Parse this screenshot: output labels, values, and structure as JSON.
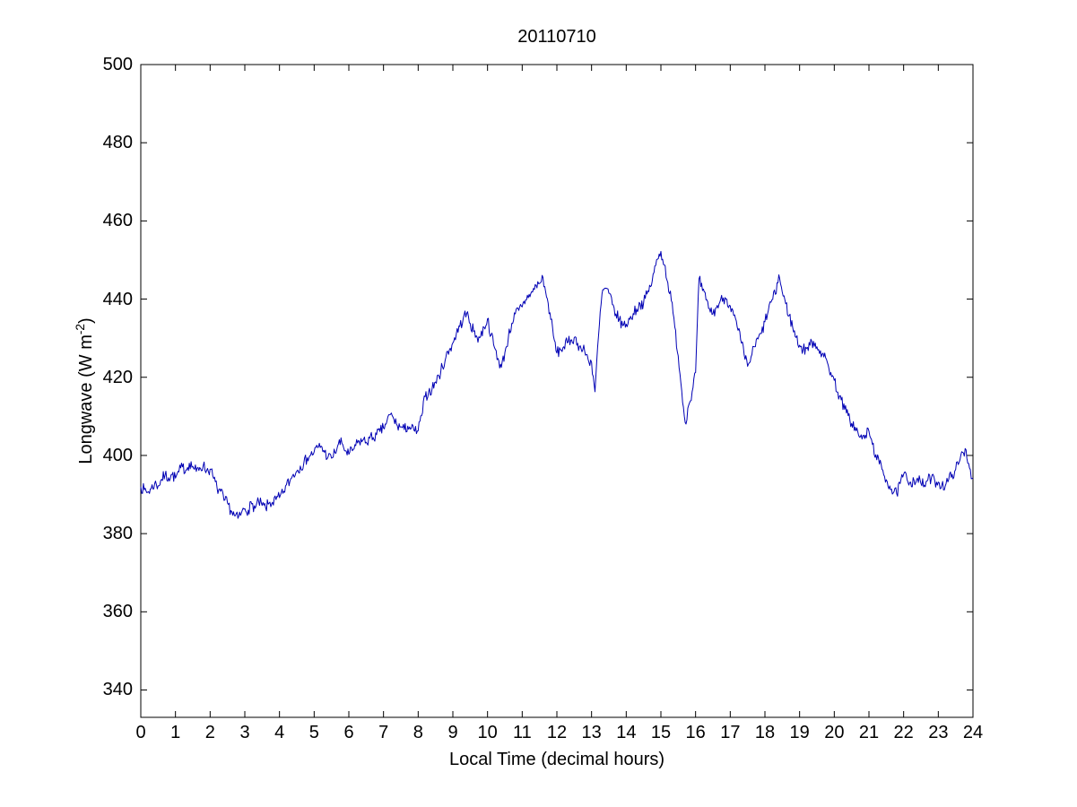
{
  "chart_data": {
    "type": "line",
    "title": "20110710",
    "xlabel": "Local Time (decimal hours)",
    "ylabel_parts": [
      "Longwave (W m",
      "-2",
      ")"
    ],
    "xlim": [
      0,
      24
    ],
    "ylim": [
      333,
      500
    ],
    "grid": false,
    "legend": "none",
    "background": "#ffffff",
    "axis_color": "#000000",
    "x_ticks": [
      0,
      1,
      2,
      3,
      4,
      5,
      6,
      7,
      8,
      9,
      10,
      11,
      12,
      13,
      14,
      15,
      16,
      17,
      18,
      19,
      20,
      21,
      22,
      23,
      24
    ],
    "x_tick_labels": [
      "0",
      "1",
      "2",
      "3",
      "4",
      "5",
      "6",
      "7",
      "8",
      "9",
      "10",
      "11",
      "12",
      "13",
      "14",
      "15",
      "16",
      "17",
      "18",
      "19",
      "20",
      "21",
      "22",
      "23",
      "24"
    ],
    "y_ticks": [
      340,
      360,
      380,
      400,
      420,
      440,
      460,
      480,
      500
    ],
    "y_tick_labels": [
      "340",
      "360",
      "380",
      "400",
      "420",
      "440",
      "460",
      "480",
      "500"
    ],
    "render_noise": {
      "amplitude": 1.5,
      "subdivisions": 4,
      "seed": 7
    },
    "series": [
      {
        "name": "longwave",
        "color": "#0000b4",
        "x_start": 0,
        "x_step": 0.1,
        "values": [
          392.0,
          391.2,
          390.6,
          391.5,
          392.8,
          392.2,
          393.9,
          395.0,
          394.3,
          395.1,
          394.2,
          395.8,
          397.1,
          396.3,
          398.0,
          397.2,
          395.9,
          396.9,
          397.4,
          396.2,
          396.5,
          394.1,
          391.6,
          390.8,
          388.5,
          387.8,
          385.9,
          384.6,
          383.9,
          385.2,
          386.4,
          386.0,
          387.6,
          386.5,
          388.1,
          387.2,
          386.6,
          387.8,
          388.0,
          388.7,
          389.2,
          390.3,
          392.5,
          393.4,
          395.2,
          396.0,
          397.3,
          397.9,
          399.4,
          400.1,
          400.9,
          402.0,
          402.4,
          400.8,
          399.6,
          399.3,
          400.7,
          403.0,
          403.1,
          401.2,
          400.3,
          401.2,
          402.5,
          403.6,
          403.9,
          403.4,
          404.4,
          404.6,
          405.3,
          406.1,
          407.0,
          408.8,
          410.5,
          409.2,
          407.6,
          407.3,
          406.6,
          407.5,
          406.9,
          406.2,
          406.3,
          410.2,
          415.0,
          416.2,
          417.0,
          418.8,
          420.3,
          422.7,
          425.2,
          427.0,
          428.8,
          431.2,
          433.0,
          435.1,
          436.4,
          433.8,
          431.7,
          430.2,
          430.4,
          432.8,
          435.0,
          430.8,
          427.6,
          424.8,
          422.5,
          426.3,
          430.2,
          433.8,
          436.2,
          437.1,
          438.0,
          439.8,
          441.2,
          441.8,
          443.5,
          444.0,
          445.5,
          440.6,
          436.5,
          430.6,
          426.2,
          427.0,
          427.8,
          428.8,
          429.5,
          430.1,
          428.7,
          427.2,
          426.8,
          424.6,
          423.8,
          416.3,
          430.5,
          441.3,
          442.8,
          441.5,
          438.6,
          436.2,
          434.8,
          433.2,
          433.6,
          434.8,
          436.3,
          437.5,
          438.8,
          439.0,
          441.3,
          443.2,
          446.8,
          450.2,
          452.2,
          448.8,
          444.2,
          439.6,
          432.8,
          425.5,
          416.6,
          408.4,
          412.8,
          416.3,
          421.2,
          445.2,
          442.2,
          439.8,
          437.6,
          436.2,
          437.8,
          439.2,
          440.3,
          440.0,
          438.3,
          435.8,
          432.8,
          429.6,
          425.8,
          422.8,
          425.2,
          427.8,
          429.8,
          431.2,
          434.2,
          437.2,
          439.8,
          441.2,
          446.2,
          441.8,
          438.8,
          435.8,
          432.8,
          430.2,
          428.2,
          427.0,
          427.4,
          428.2,
          429.2,
          427.8,
          426.8,
          425.2,
          423.8,
          421.2,
          419.2,
          416.2,
          414.2,
          411.8,
          410.2,
          408.2,
          407.2,
          405.2,
          404.2,
          405.2,
          406.2,
          402.8,
          400.2,
          397.8,
          396.2,
          393.8,
          392.2,
          390.4,
          390.2,
          392.8,
          395.2,
          393.8,
          393.2,
          393.6,
          394.2,
          392.8,
          392.4,
          393.8,
          394.2,
          393.4,
          393.2,
          392.4,
          392.2,
          393.8,
          395.2,
          396.4,
          398.2,
          400.8,
          401.4,
          396.8,
          394.2
        ]
      }
    ]
  }
}
